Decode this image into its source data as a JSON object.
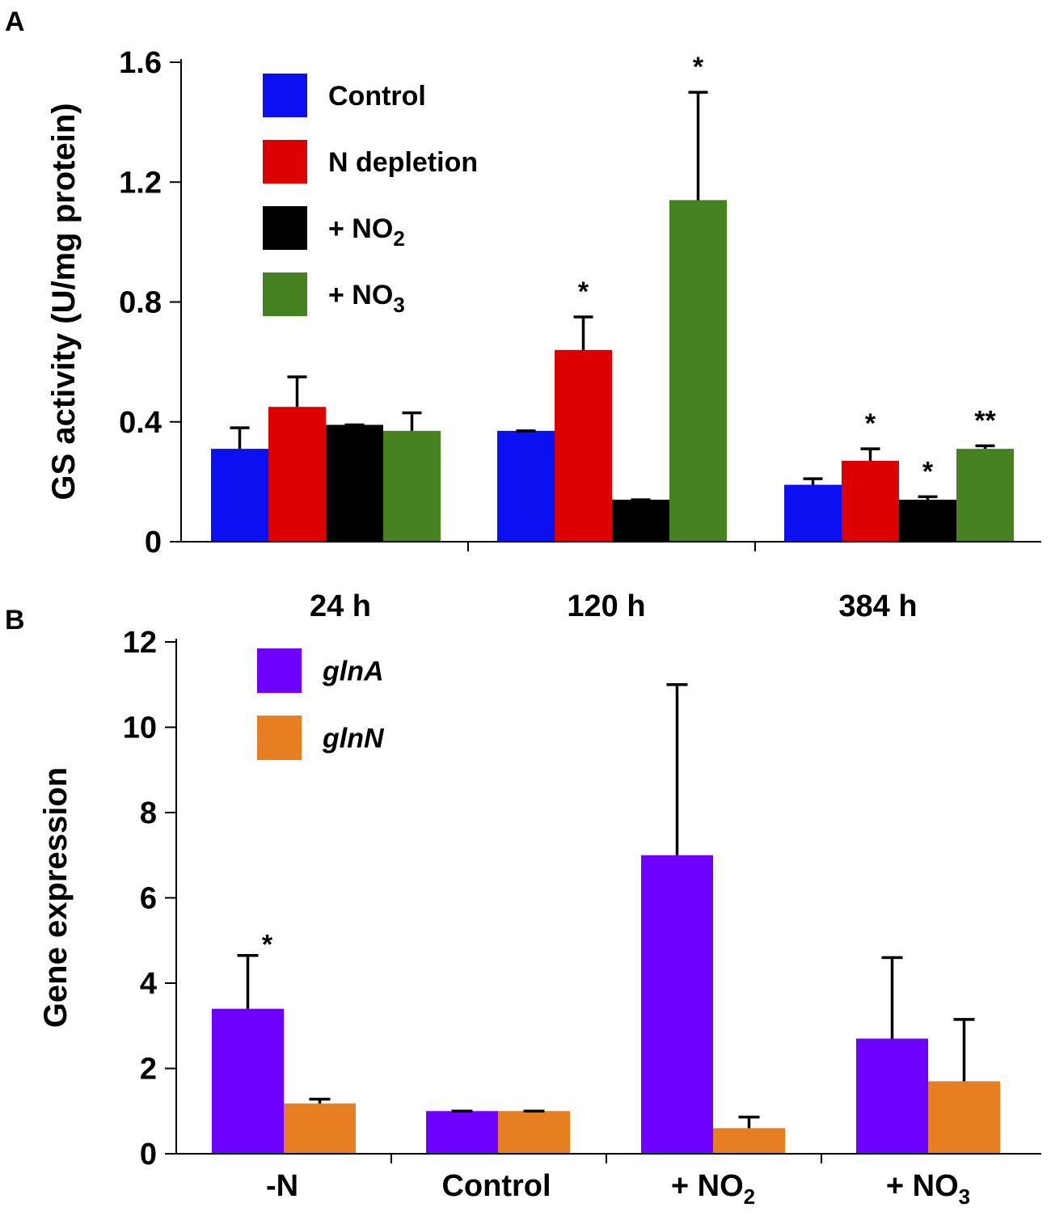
{
  "chart_data": [
    {
      "panel": "A",
      "type": "bar",
      "ylabel": "GS activity (U/mg protein)",
      "xlabel": "",
      "ylim": [
        0,
        1.6
      ],
      "yticks": [
        "0",
        "0.4",
        "0.8",
        "1.2",
        "1.6"
      ],
      "ytick_values": [
        0,
        0.4,
        0.8,
        1.2,
        1.6
      ],
      "categories": [
        "24 h",
        "120 h",
        "384 h"
      ],
      "legend_position": "top-left",
      "series": [
        {
          "name": "Control",
          "name_main": "Control",
          "name_sub": "",
          "color": "#0a10f0",
          "values": [
            0.31,
            0.37,
            0.19
          ],
          "errors": [
            0.07,
            0.0,
            0.02
          ],
          "sig": [
            "",
            "",
            ""
          ]
        },
        {
          "name": "N depletion",
          "name_main": "N depletion",
          "name_sub": "",
          "color": "#dd0000",
          "values": [
            0.45,
            0.64,
            0.27
          ],
          "errors": [
            0.1,
            0.11,
            0.04
          ],
          "sig": [
            "",
            "*",
            "*"
          ]
        },
        {
          "name": "+ NO2",
          "name_main": "+ NO",
          "name_sub": "2",
          "color": "#000000",
          "values": [
            0.39,
            0.14,
            0.14
          ],
          "errors": [
            0.0,
            0.0,
            0.01
          ],
          "sig": [
            "",
            "",
            "*"
          ]
        },
        {
          "name": "+ NO3",
          "name_main": "+ NO",
          "name_sub": "3",
          "color": "#468220",
          "values": [
            0.37,
            1.14,
            0.31
          ],
          "errors": [
            0.06,
            0.36,
            0.01
          ],
          "sig": [
            "",
            "*",
            "**"
          ]
        }
      ]
    },
    {
      "panel": "B",
      "type": "bar",
      "ylabel": "Gene expression",
      "xlabel": "",
      "ylim": [
        0,
        12
      ],
      "yticks": [
        "0",
        "2",
        "4",
        "6",
        "8",
        "10",
        "12"
      ],
      "ytick_values": [
        0,
        2,
        4,
        6,
        8,
        10,
        12
      ],
      "categories": [
        {
          "main": "-N",
          "sub": ""
        },
        {
          "main": "Control",
          "sub": ""
        },
        {
          "main": "+ NO",
          "sub": "2"
        },
        {
          "main": "+ NO",
          "sub": "3"
        }
      ],
      "legend_position": "top-left",
      "series": [
        {
          "name": "glnA",
          "italic": true,
          "color": "#6e00ff",
          "values": [
            3.4,
            1.0,
            7.0,
            2.7
          ],
          "errors": [
            1.25,
            0.0,
            4.0,
            1.9
          ],
          "sig": [
            "*",
            "",
            "",
            ""
          ]
        },
        {
          "name": "glnN",
          "italic": true,
          "color": "#e57f22",
          "values": [
            1.18,
            1.0,
            0.6,
            1.7
          ],
          "errors": [
            0.1,
            0.0,
            0.26,
            1.45
          ],
          "sig": [
            "",
            "",
            "",
            ""
          ]
        }
      ]
    }
  ]
}
